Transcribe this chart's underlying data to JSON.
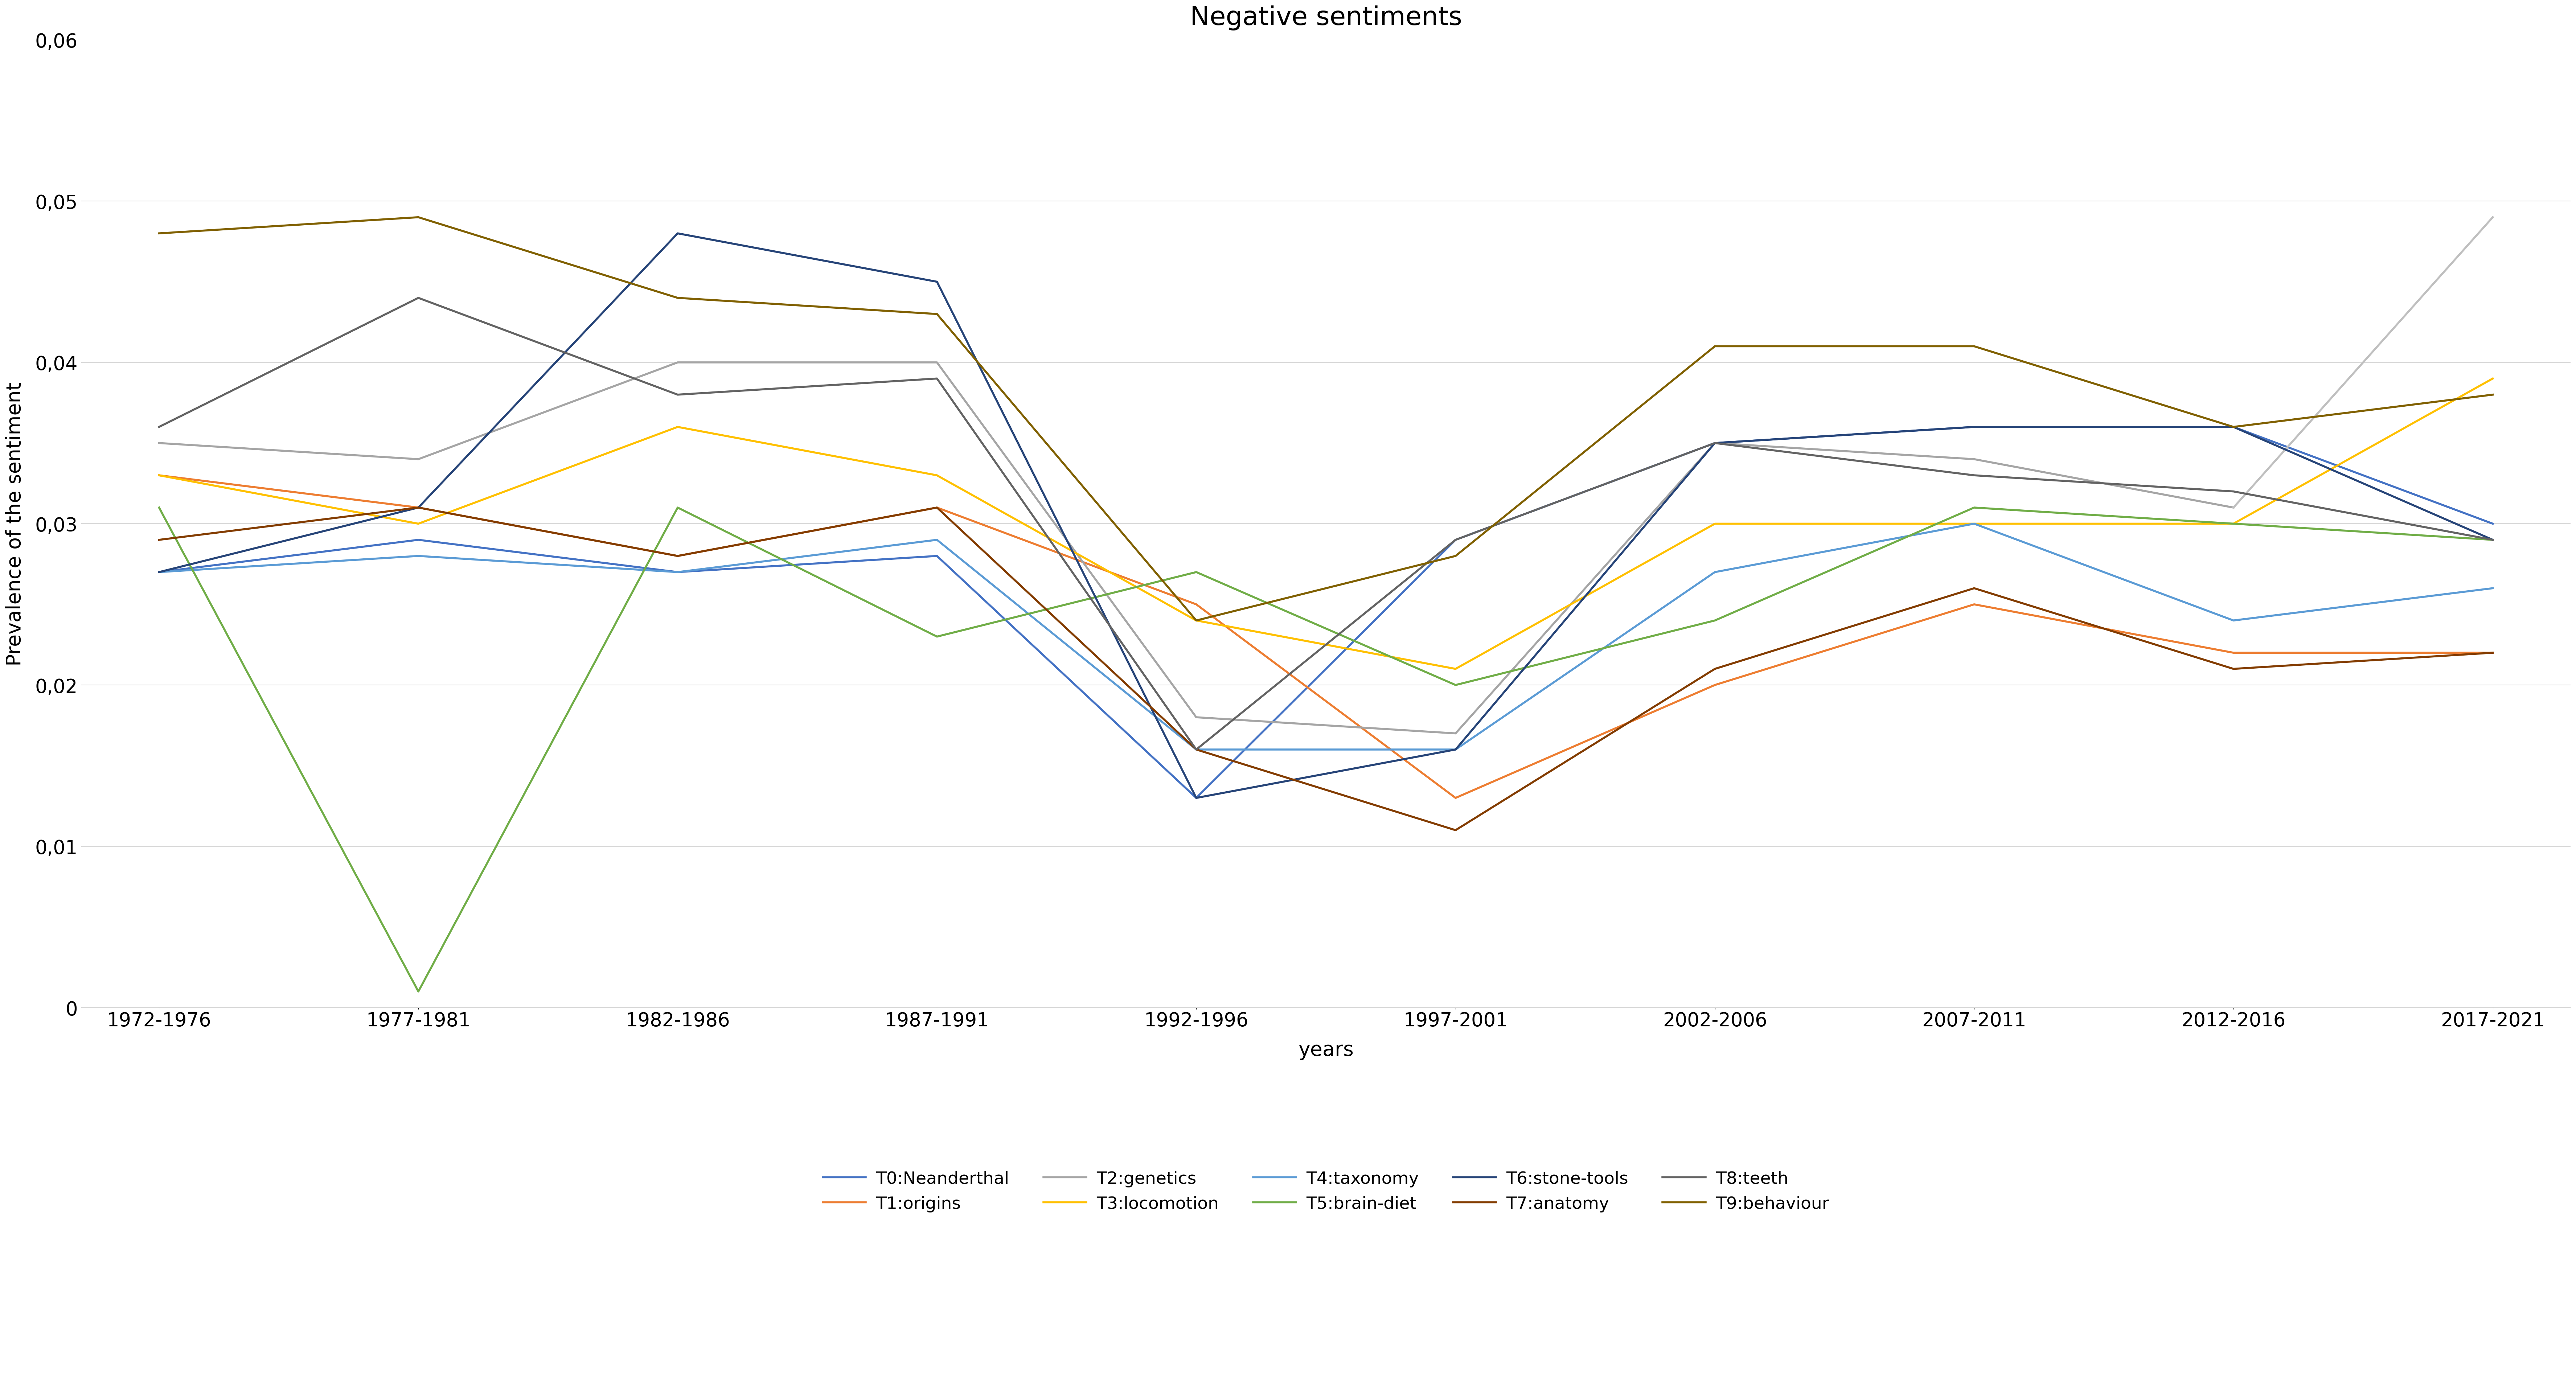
{
  "title": "Negative sentiments",
  "xlabel": "years",
  "ylabel": "Prevalence of the sentiment",
  "categories": [
    "1972-1976",
    "1977-1981",
    "1982-1986",
    "1987-1991",
    "1992-1996",
    "1997-2001",
    "2002-2006",
    "2007-2011",
    "2012-2016",
    "2017-2021"
  ],
  "series": [
    {
      "name": "T0:Neanderthal",
      "values": [
        0.027,
        0.029,
        0.027,
        0.028,
        0.013,
        0.029,
        0.035,
        0.036,
        0.036,
        0.03
      ],
      "color": "#4472C4"
    },
    {
      "name": "T1:origins",
      "values": [
        0.033,
        0.031,
        0.028,
        0.031,
        0.025,
        0.013,
        0.02,
        0.025,
        0.022,
        0.022
      ],
      "color": "#ED7D31"
    },
    {
      "name": "T2:genetics",
      "values": [
        0.035,
        0.034,
        0.04,
        0.04,
        0.018,
        0.017,
        0.035,
        0.034,
        0.031,
        0.049
      ],
      "color": "#A5A5A5",
      "last_segment_color": "#BFBFBF"
    },
    {
      "name": "T3:locomotion",
      "values": [
        0.033,
        0.03,
        0.036,
        0.033,
        0.024,
        0.021,
        0.03,
        0.03,
        0.03,
        0.039
      ],
      "color": "#FFC000"
    },
    {
      "name": "T4:taxonomy",
      "values": [
        0.027,
        0.028,
        0.027,
        0.029,
        0.016,
        0.016,
        0.027,
        0.03,
        0.024,
        0.026
      ],
      "color": "#5B9BD5"
    },
    {
      "name": "T5:brain-diet",
      "values": [
        0.031,
        0.001,
        0.031,
        0.023,
        0.027,
        0.02,
        0.024,
        0.031,
        0.03,
        0.029
      ],
      "color": "#70AD47"
    },
    {
      "name": "T6:stone-tools",
      "values": [
        0.027,
        0.031,
        0.048,
        0.045,
        0.013,
        0.016,
        0.035,
        0.036,
        0.036,
        0.029
      ],
      "color": "#264478"
    },
    {
      "name": "T7:anatomy",
      "values": [
        0.029,
        0.031,
        0.028,
        0.031,
        0.016,
        0.011,
        0.021,
        0.026,
        0.021,
        0.022
      ],
      "color": "#833C00"
    },
    {
      "name": "T8:teeth",
      "values": [
        0.036,
        0.044,
        0.038,
        0.039,
        0.016,
        0.029,
        0.035,
        0.033,
        0.032,
        0.029
      ],
      "color": "#636363"
    },
    {
      "name": "T9:behaviour",
      "values": [
        0.048,
        0.049,
        0.044,
        0.043,
        0.024,
        0.028,
        0.041,
        0.041,
        0.036,
        0.038
      ],
      "color": "#806000"
    }
  ],
  "ylim": [
    0,
    0.06
  ],
  "yticks": [
    0,
    0.01,
    0.02,
    0.03,
    0.04,
    0.05,
    0.06
  ],
  "background_color": "#FFFFFF",
  "grid_color": "#D9D9D9",
  "title_fontsize": 52,
  "axis_label_fontsize": 40,
  "tick_fontsize": 38,
  "legend_fontsize": 34,
  "linewidth": 4.0
}
